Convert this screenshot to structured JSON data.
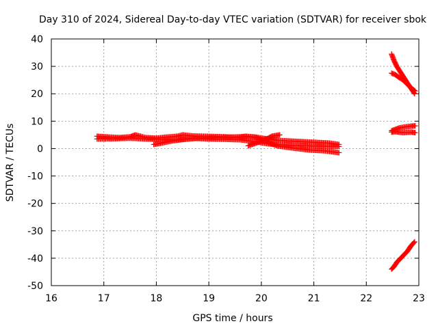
{
  "chart_data": {
    "type": "scatter",
    "title": "Day 310 of 2024, Sidereal Day-to-day VTEC variation (SDTVAR) for receiver sbok",
    "xlabel": "GPS time / hours",
    "ylabel": "SDTVAR / TECUs",
    "xlim": [
      16,
      23
    ],
    "ylim": [
      -50,
      40
    ],
    "x_ticks": [
      "16",
      "17",
      "18",
      "19",
      "20",
      "21",
      "22",
      "23"
    ],
    "y_ticks": [
      "40",
      "30",
      "20",
      "10",
      "0",
      "-10",
      "-20",
      "-30",
      "-40",
      "-50"
    ],
    "grid": true,
    "marker": "+",
    "color": "#ff0000",
    "series": [
      {
        "segments": [
          {
            "x": [
              16.87,
              17.1,
              17.3,
              17.5,
              17.6,
              17.8,
              18.0,
              18.2,
              18.4,
              18.5,
              18.7,
              18.9,
              19.1,
              19.3,
              19.5,
              19.7,
              19.9,
              20.0,
              20.15,
              20.3,
              20.5,
              20.7,
              20.9,
              21.1,
              21.3,
              21.48
            ],
            "y": [
              4.5,
              4.2,
              4.0,
              4.3,
              5.0,
              4.0,
              3.8,
              4.2,
              4.5,
              5.0,
              4.6,
              4.5,
              4.4,
              4.3,
              4.0,
              4.5,
              4.2,
              3.8,
              3.5,
              3.0,
              2.8,
              2.6,
              2.4,
              2.2,
              2.0,
              1.5
            ]
          },
          {
            "x": [
              16.87,
              17.2,
              17.5,
              17.8,
              18.1,
              18.4,
              18.7,
              19.0,
              19.3,
              19.6,
              19.9,
              20.1,
              20.3,
              20.6,
              20.9,
              21.2,
              21.48
            ],
            "y": [
              3.5,
              3.6,
              3.8,
              3.5,
              3.3,
              3.2,
              3.8,
              3.5,
              3.4,
              3.2,
              2.5,
              1.8,
              1.5,
              1.2,
              1.0,
              0.8,
              0.8
            ]
          },
          {
            "x": [
              17.95,
              18.1,
              18.3,
              18.5,
              18.8,
              19.1,
              19.4,
              19.7,
              19.9,
              20.1,
              20.3,
              20.6,
              20.9,
              21.2,
              21.48
            ],
            "y": [
              1.5,
              2.0,
              2.8,
              3.3,
              3.8,
              4.0,
              4.2,
              4.3,
              4.0,
              2.5,
              1.0,
              0.2,
              -0.5,
              -0.8,
              -1.5
            ]
          },
          {
            "x": [
              19.75,
              19.9,
              20.05,
              20.2,
              20.35
            ],
            "y": [
              1.0,
              2.0,
              3.0,
              4.5,
              5.0
            ]
          },
          {
            "x": [
              22.48,
              22.53,
              22.58,
              22.63,
              22.68,
              22.73,
              22.78,
              22.85,
              22.92
            ],
            "y": [
              34.5,
              32.0,
              30.0,
              28.5,
              27.0,
              25.5,
              24.0,
              22.0,
              20.0
            ]
          },
          {
            "x": [
              22.48,
              22.55,
              22.62,
              22.7,
              22.78,
              22.86,
              22.93
            ],
            "y": [
              27.5,
              27.0,
              26.0,
              25.0,
              23.5,
              22.0,
              21.0
            ]
          },
          {
            "x": [
              22.48,
              22.55,
              22.62,
              22.7,
              22.78,
              22.86,
              22.93
            ],
            "y": [
              6.5,
              7.0,
              7.5,
              7.8,
              8.0,
              8.2,
              8.3
            ]
          },
          {
            "x": [
              22.48,
              22.55,
              22.62,
              22.7,
              22.78,
              22.86,
              22.93
            ],
            "y": [
              6.0,
              6.2,
              6.0,
              5.8,
              5.9,
              6.0,
              5.8
            ]
          },
          {
            "x": [
              22.48,
              22.53,
              22.58,
              22.63,
              22.68,
              22.73,
              22.78,
              22.85,
              22.92
            ],
            "y": [
              -44.0,
              -43.0,
              -41.5,
              -40.5,
              -39.5,
              -38.5,
              -37.5,
              -35.5,
              -34.0
            ]
          }
        ]
      }
    ]
  }
}
